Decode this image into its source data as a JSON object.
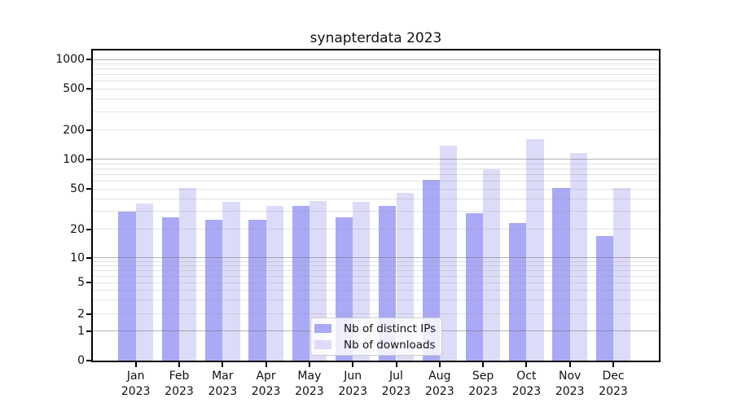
{
  "chart_data": {
    "type": "bar",
    "title": "synapterdata 2023",
    "categories": [
      "Jan",
      "Feb",
      "Mar",
      "Apr",
      "May",
      "Jun",
      "Jul",
      "Aug",
      "Sep",
      "Oct",
      "Nov",
      "Dec"
    ],
    "x_year_label": "2023",
    "series": [
      {
        "name": "Nb of distinct IPs",
        "color": "#a9a9f6",
        "values": [
          30,
          26,
          25,
          25,
          34,
          26,
          34,
          62,
          29,
          23,
          51,
          17
        ]
      },
      {
        "name": "Nb of downloads",
        "color": "#dcdcf9",
        "values": [
          36,
          51,
          37,
          34,
          38,
          37,
          46,
          138,
          79,
          160,
          117,
          51
        ]
      }
    ],
    "yscale": "symlog",
    "yticks": [
      0,
      1,
      2,
      5,
      10,
      20,
      50,
      100,
      200,
      500,
      1000
    ],
    "ylim": [
      0,
      1500
    ],
    "grid": true,
    "legend_position": "lower center"
  },
  "colors": {
    "background": "#ffffff",
    "spine": "#000000",
    "grid_major": "rgba(110,110,110,0.52)",
    "grid_minor": "rgba(150,150,150,0.28)",
    "legend_border": "#cccccc",
    "text": "#111111"
  }
}
